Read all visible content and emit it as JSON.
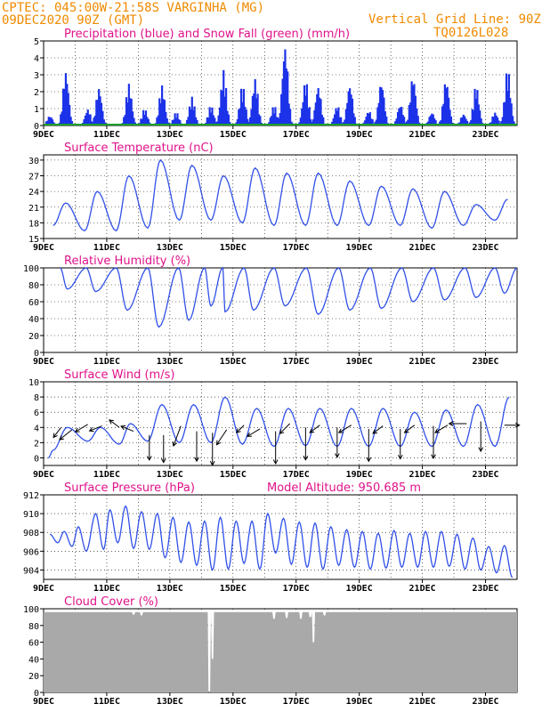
{
  "header": {
    "line1": "CPTEC:   045:00W-21:58S  VARGINHA (MG)",
    "line2": "09DEC2020 90Z (GMT)",
    "vgrid": "Vertical Grid Line: 90Z",
    "code": "TQ0126L028"
  },
  "x_axis_labels": [
    "9DEC",
    "11DEC",
    "13DEC",
    "15DEC",
    "17DEC",
    "19DEC",
    "21DEC",
    "23DEC"
  ],
  "colors": {
    "header": "#f08a00",
    "title": "#e0128a",
    "line": "#3050e8",
    "precip": "#1c32e8",
    "snow": "#1aa02a",
    "cloud": "#a9a9a9"
  },
  "chart_data": [
    {
      "type": "bar",
      "title": "Precipitation (blue) and Snow Fall (green) (mm/h)",
      "ylim": [
        0,
        5
      ],
      "yticks": [
        0,
        1,
        2,
        3,
        4,
        5
      ],
      "series": [
        {
          "name": "Precipitation",
          "color": "#1c32e8",
          "peaks": [
            [
              0.2,
              0.6
            ],
            [
              0.7,
              3.3
            ],
            [
              1.4,
              1.0
            ],
            [
              1.75,
              2.3
            ],
            [
              2.7,
              2.5
            ],
            [
              3.2,
              1.0
            ],
            [
              3.75,
              2.4
            ],
            [
              4.2,
              0.8
            ],
            [
              4.7,
              1.7
            ],
            [
              5.3,
              1.2
            ],
            [
              5.7,
              3.3
            ],
            [
              6.3,
              2.4
            ],
            [
              6.7,
              2.8
            ],
            [
              7.3,
              1.2
            ],
            [
              7.65,
              4.9
            ],
            [
              8.3,
              2.7
            ],
            [
              8.7,
              2.4
            ],
            [
              9.3,
              1.2
            ],
            [
              9.7,
              2.5
            ],
            [
              10.3,
              0.9
            ],
            [
              10.7,
              2.7
            ],
            [
              11.3,
              1.3
            ],
            [
              11.7,
              3.0
            ],
            [
              12.3,
              0.8
            ],
            [
              12.75,
              2.8
            ],
            [
              13.3,
              0.7
            ],
            [
              13.7,
              2.4
            ],
            [
              14.3,
              0.8
            ],
            [
              14.7,
              3.4
            ]
          ]
        },
        {
          "name": "Snow Fall",
          "color": "#1aa02a",
          "values": "0 throughout"
        }
      ]
    },
    {
      "type": "line",
      "title": "Surface Temperature (nC)",
      "ylim": [
        15,
        31
      ],
      "yticks": [
        15,
        18,
        21,
        24,
        27,
        30
      ],
      "series": [
        {
          "name": "Temperature",
          "color": "#3050e8",
          "maxima": [
            [
              0.7,
              21.8
            ],
            [
              1.7,
              24
            ],
            [
              2.7,
              27
            ],
            [
              3.7,
              30
            ],
            [
              4.7,
              29
            ],
            [
              5.7,
              27
            ],
            [
              6.7,
              28.5
            ],
            [
              7.7,
              27.5
            ],
            [
              8.7,
              27.5
            ],
            [
              9.7,
              26
            ],
            [
              10.7,
              25
            ],
            [
              11.7,
              24.5
            ],
            [
              12.7,
              24
            ],
            [
              13.7,
              21.5
            ],
            [
              14.7,
              22.5
            ]
          ],
          "minima": [
            [
              0.3,
              17.5
            ],
            [
              1.3,
              16.5
            ],
            [
              2.3,
              16.5
            ],
            [
              3.3,
              17
            ],
            [
              4.3,
              18.5
            ],
            [
              5.3,
              18.5
            ],
            [
              6.3,
              18
            ],
            [
              7.3,
              17.5
            ],
            [
              8.3,
              17.5
            ],
            [
              9.3,
              17.5
            ],
            [
              10.3,
              17.5
            ],
            [
              11.3,
              17.5
            ],
            [
              12.3,
              17
            ],
            [
              13.3,
              17.5
            ],
            [
              14.3,
              18.5
            ]
          ]
        }
      ]
    },
    {
      "type": "line",
      "title": "Relative Humidity (%)",
      "ylim": [
        0,
        100
      ],
      "yticks": [
        0,
        20,
        40,
        60,
        80,
        100
      ],
      "series": [
        {
          "name": "Relative Humidity",
          "color": "#3050e8",
          "minima": [
            [
              0.75,
              75
            ],
            [
              1.65,
              72
            ],
            [
              2.65,
              50
            ],
            [
              3.65,
              30
            ],
            [
              4.6,
              38
            ],
            [
              5.3,
              55
            ],
            [
              5.75,
              48
            ],
            [
              6.65,
              50
            ],
            [
              7.65,
              55
            ],
            [
              8.7,
              45
            ],
            [
              9.7,
              50
            ],
            [
              10.7,
              52
            ],
            [
              11.7,
              60
            ],
            [
              12.7,
              62
            ],
            [
              13.7,
              65
            ],
            [
              14.6,
              70
            ]
          ],
          "max": 100
        }
      ]
    },
    {
      "type": "line",
      "title": "Surface Wind (m/s)",
      "ylim": [
        -1,
        10
      ],
      "yticks": [
        0,
        2,
        4,
        6,
        8,
        10
      ],
      "series": [
        {
          "name": "Wind Speed",
          "color": "#3050e8",
          "maxima": [
            [
              0.3,
              1
            ],
            [
              0.75,
              4
            ],
            [
              1.8,
              4
            ],
            [
              2.75,
              4.5
            ],
            [
              3.75,
              7
            ],
            [
              4.75,
              7
            ],
            [
              5.75,
              8
            ],
            [
              6.75,
              6.5
            ],
            [
              7.75,
              6.5
            ],
            [
              8.75,
              6.5
            ],
            [
              9.75,
              6.5
            ],
            [
              10.75,
              6.5
            ],
            [
              11.75,
              6
            ],
            [
              12.75,
              6.3
            ],
            [
              13.75,
              7
            ],
            [
              14.75,
              8
            ]
          ],
          "minima": [
            [
              0.15,
              0
            ],
            [
              1.4,
              2.2
            ],
            [
              2.4,
              1.8
            ],
            [
              3.3,
              2.2
            ],
            [
              4.3,
              2
            ],
            [
              5.3,
              2
            ],
            [
              6.3,
              1.8
            ],
            [
              7.3,
              1.5
            ],
            [
              8.3,
              1.6
            ],
            [
              9.3,
              1.5
            ],
            [
              10.3,
              1.5
            ],
            [
              11.3,
              1.5
            ],
            [
              12.3,
              1.5
            ],
            [
              13.3,
              1.5
            ],
            [
              14.3,
              1.5
            ]
          ]
        }
      ],
      "wind_vectors": [
        [
          0.55,
          4,
          -0.3,
          -0.4
        ],
        [
          0.9,
          3.7,
          -0.5,
          -0.4
        ],
        [
          1.4,
          4.4,
          -0.5,
          -0.3
        ],
        [
          1.85,
          4.2,
          -0.5,
          -0.2
        ],
        [
          2.4,
          4.0,
          -0.4,
          0.3
        ],
        [
          2.85,
          3.5,
          -0.5,
          0.2
        ],
        [
          3.35,
          3.0,
          0,
          -1.0
        ],
        [
          3.8,
          3.0,
          0,
          -1.1
        ],
        [
          4.35,
          4.2,
          -0.3,
          -0.8
        ],
        [
          4.85,
          3.5,
          0,
          -1.2
        ],
        [
          5.35,
          3.3,
          0,
          -1.3
        ],
        [
          5.8,
          3.7,
          -0.4,
          -0.6
        ],
        [
          6.35,
          4.3,
          -0.3,
          -0.3
        ],
        [
          6.85,
          3.8,
          -0.5,
          -0.3
        ],
        [
          7.35,
          3.5,
          0,
          -1.3
        ],
        [
          7.8,
          4.5,
          -0.4,
          -0.4
        ],
        [
          8.3,
          4.0,
          0,
          -1.3
        ],
        [
          8.75,
          4.3,
          -0.4,
          -0.3
        ],
        [
          9.3,
          4.0,
          0,
          -1.2
        ],
        [
          9.75,
          4.3,
          -0.5,
          -0.3
        ],
        [
          10.3,
          3.8,
          0,
          -1.3
        ],
        [
          10.75,
          4.2,
          -0.4,
          -0.3
        ],
        [
          11.3,
          3.8,
          0,
          -1.2
        ],
        [
          11.75,
          4.3,
          -0.4,
          -0.3
        ],
        [
          12.35,
          4.2,
          0,
          -1.3
        ],
        [
          12.8,
          4.3,
          -0.5,
          -0.3
        ],
        [
          13.4,
          4.5,
          -0.7,
          0
        ],
        [
          13.85,
          4.8,
          0,
          -1.2
        ],
        [
          14.6,
          4.3,
          0.6,
          0
        ]
      ]
    },
    {
      "type": "line",
      "title": "Surface Pressure (hPa)",
      "annotation": "Model Altitude: 950.685 m",
      "ylim": [
        903,
        912
      ],
      "yticks": [
        904,
        906,
        908,
        910,
        912
      ],
      "series": [
        {
          "name": "Pressure",
          "color": "#3050e8",
          "maxima": [
            [
              0.2,
              907.8
            ],
            [
              0.65,
              908.1
            ],
            [
              1.1,
              908.6
            ],
            [
              1.65,
              910
            ],
            [
              2.1,
              910.4
            ],
            [
              2.6,
              910.8
            ],
            [
              3.1,
              910.2
            ],
            [
              3.6,
              910
            ],
            [
              4.1,
              909.6
            ],
            [
              4.6,
              909.1
            ],
            [
              5.1,
              909.2
            ],
            [
              5.6,
              909.6
            ],
            [
              6.1,
              909.2
            ],
            [
              6.6,
              909.2
            ],
            [
              7.1,
              910
            ],
            [
              7.6,
              909.5
            ],
            [
              8.1,
              909.1
            ],
            [
              8.6,
              909
            ],
            [
              9.1,
              908.6
            ],
            [
              9.6,
              908.3
            ],
            [
              10.1,
              908.1
            ],
            [
              10.6,
              907.9
            ],
            [
              11.1,
              908.2
            ],
            [
              11.6,
              907.9
            ],
            [
              12.1,
              908.1
            ],
            [
              12.6,
              908.1
            ],
            [
              13.1,
              907.8
            ],
            [
              13.6,
              907.4
            ],
            [
              14.1,
              906.5
            ],
            [
              14.6,
              906.6
            ]
          ],
          "minima": [
            [
              0.45,
              906.9
            ],
            [
              0.9,
              906.5
            ],
            [
              1.35,
              906
            ],
            [
              1.9,
              906.2
            ],
            [
              2.35,
              906.9
            ],
            [
              2.85,
              906.3
            ],
            [
              3.35,
              906.2
            ],
            [
              3.85,
              905.3
            ],
            [
              4.35,
              904.8
            ],
            [
              4.85,
              904.5
            ],
            [
              5.35,
              904
            ],
            [
              5.85,
              904.1
            ],
            [
              6.35,
              904.7
            ],
            [
              6.85,
              904.1
            ],
            [
              7.35,
              905.8
            ],
            [
              7.85,
              904.6
            ],
            [
              8.35,
              904.3
            ],
            [
              8.85,
              904.1
            ],
            [
              9.35,
              904.5
            ],
            [
              9.85,
              904.3
            ],
            [
              10.35,
              904.1
            ],
            [
              10.85,
              904.2
            ],
            [
              11.35,
              904.3
            ],
            [
              11.85,
              904.3
            ],
            [
              12.35,
              904.3
            ],
            [
              12.85,
              904.4
            ],
            [
              13.35,
              904.1
            ],
            [
              13.85,
              904
            ],
            [
              14.35,
              903.7
            ],
            [
              14.85,
              903.2
            ]
          ]
        }
      ]
    },
    {
      "type": "area",
      "title": "Cloud Cover (%)",
      "ylim": [
        0,
        100
      ],
      "yticks": [
        0,
        20,
        40,
        60,
        80,
        100
      ],
      "series": [
        {
          "name": "Cloud Cover",
          "color": "#a9a9a9",
          "baseline": 96,
          "dips": [
            [
              2.85,
              93
            ],
            [
              3.1,
              92
            ],
            [
              5.25,
              0
            ],
            [
              5.35,
              40
            ],
            [
              7.3,
              88
            ],
            [
              7.7,
              89
            ],
            [
              8.15,
              88
            ],
            [
              8.45,
              90
            ],
            [
              8.55,
              60
            ],
            [
              8.9,
              92
            ]
          ]
        }
      ]
    }
  ]
}
